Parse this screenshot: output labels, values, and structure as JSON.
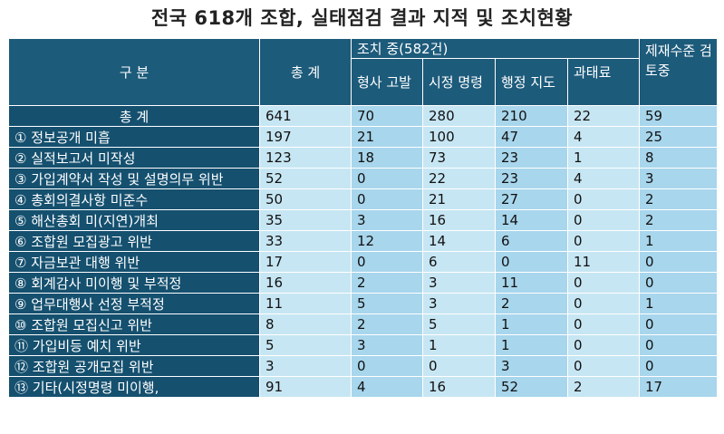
{
  "title": "전국 618개 조합, 실태점검 결과 지적 및 조치현황",
  "header": {
    "category": "구 분",
    "total": "총 계",
    "in_action": "조치 중(582건)",
    "sanction": "제재수준 검토중",
    "criminal": "형사 고발",
    "correction": "시정 명령",
    "admin": "행정 지도",
    "fine": "과태료"
  },
  "total_row": {
    "label": "총 계",
    "values": [
      "641",
      "70",
      "280",
      "210",
      "22",
      "59"
    ]
  },
  "rows": [
    {
      "label": "① 정보공개 미흡",
      "values": [
        "197",
        "21",
        "100",
        "47",
        "4",
        "25"
      ]
    },
    {
      "label": "② 실적보고서 미작성",
      "values": [
        "123",
        "18",
        "73",
        "23",
        "1",
        "8"
      ]
    },
    {
      "label": "③ 가입계약서 작성 및 설명의무 위반",
      "values": [
        "52",
        "0",
        "22",
        "23",
        "4",
        "3"
      ]
    },
    {
      "label": "④ 총회의결사항 미준수",
      "values": [
        "50",
        "0",
        "21",
        "27",
        "0",
        "2"
      ]
    },
    {
      "label": "⑤ 해산총회 미(지연)개최",
      "values": [
        "35",
        "3",
        "16",
        "14",
        "0",
        "2"
      ]
    },
    {
      "label": "⑥ 조합원 모집광고 위반",
      "values": [
        "33",
        "12",
        "14",
        "6",
        "0",
        "1"
      ]
    },
    {
      "label": "⑦ 자금보관 대행 위반",
      "values": [
        "17",
        "0",
        "6",
        "0",
        "11",
        "0"
      ]
    },
    {
      "label": "⑧ 회계감사 미이행 및 부적정",
      "values": [
        "16",
        "2",
        "3",
        "11",
        "0",
        "0"
      ]
    },
    {
      "label": "⑨ 업무대행사 선정 부적정",
      "values": [
        "11",
        "5",
        "3",
        "2",
        "0",
        "1"
      ]
    },
    {
      "label": "⑩ 조합원 모집신고 위반",
      "values": [
        "8",
        "2",
        "5",
        "1",
        "0",
        "0"
      ]
    },
    {
      "label": "⑪ 가입비등 예치 위반",
      "values": [
        "5",
        "3",
        "1",
        "1",
        "0",
        "0"
      ]
    },
    {
      "label": "⑫ 조합원 공개모집 위반",
      "values": [
        "3",
        "0",
        "0",
        "3",
        "0",
        "0"
      ]
    },
    {
      "label": "⑬ 기타(시정명령 미이행,",
      "values": [
        "91",
        "4",
        "16",
        "52",
        "2",
        "17"
      ]
    }
  ]
}
